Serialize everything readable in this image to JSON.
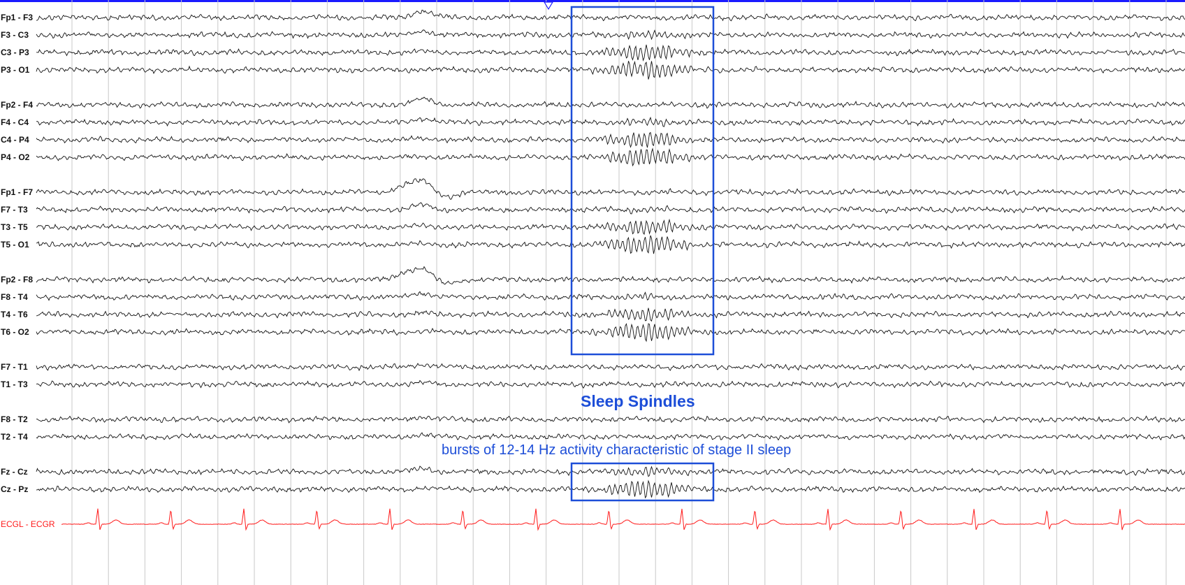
{
  "channels": [
    {
      "label": "Fp1 - F3",
      "spindle": 0.0,
      "slow": 1.0,
      "color": "#111111"
    },
    {
      "label": "F3 - C3",
      "spindle": 0.35,
      "slow": 0.6,
      "color": "#111111"
    },
    {
      "label": "C3 - P3",
      "spindle": 0.9,
      "slow": 0.2,
      "color": "#111111"
    },
    {
      "label": "P3 - O1",
      "spindle": 1.0,
      "slow": 0.1,
      "color": "#111111"
    },
    {
      "label": "Fp2 - F4",
      "spindle": 0.0,
      "slow": 1.0,
      "color": "#111111"
    },
    {
      "label": "F4 - C4",
      "spindle": 0.35,
      "slow": 0.6,
      "color": "#111111"
    },
    {
      "label": "C4 - P4",
      "spindle": 0.9,
      "slow": 0.2,
      "color": "#111111"
    },
    {
      "label": "P4 - O2",
      "spindle": 1.0,
      "slow": 0.1,
      "color": "#111111"
    },
    {
      "label": "Fp1 - F7",
      "spindle": 0.0,
      "slow": 1.6,
      "color": "#111111"
    },
    {
      "label": "F7 - T3",
      "spindle": 0.2,
      "slow": 0.8,
      "color": "#111111"
    },
    {
      "label": "T3 - T5",
      "spindle": 0.8,
      "slow": 0.2,
      "color": "#111111"
    },
    {
      "label": "T5 - O1",
      "spindle": 1.05,
      "slow": 0.1,
      "color": "#111111"
    },
    {
      "label": "Fp2 - F8",
      "spindle": 0.0,
      "slow": 1.6,
      "color": "#111111"
    },
    {
      "label": "F8 - T4",
      "spindle": 0.25,
      "slow": 0.6,
      "color": "#111111"
    },
    {
      "label": "T4 - T6",
      "spindle": 0.75,
      "slow": 0.2,
      "color": "#111111"
    },
    {
      "label": "T6 - O2",
      "spindle": 1.05,
      "slow": 0.1,
      "color": "#111111"
    },
    {
      "label": "F7 - T1",
      "spindle": 0.0,
      "slow": 0.4,
      "color": "#111111"
    },
    {
      "label": "T1 - T3",
      "spindle": 0.0,
      "slow": 0.3,
      "color": "#111111"
    },
    {
      "label": "F8 - T2",
      "spindle": 0.0,
      "slow": 0.4,
      "color": "#111111"
    },
    {
      "label": "T2 - T4",
      "spindle": 0.0,
      "slow": 0.3,
      "color": "#111111"
    },
    {
      "label": "Fz - Cz",
      "spindle": 0.4,
      "slow": 0.5,
      "color": "#111111"
    },
    {
      "label": "Cz - Pz",
      "spindle": 1.0,
      "slow": 0.2,
      "color": "#111111"
    }
  ],
  "ecg": {
    "label": "ECGL - ECGR",
    "color": "#ff1a1a"
  },
  "annotation": {
    "title": "Sleep Spindles",
    "caption": "bursts of 12-14 Hz activity characteristic of stage II sleep",
    "color": "#1d4ed8"
  },
  "colors": {
    "grid": "#c8c8c8",
    "top_bar": "#1a1aff",
    "trace": "#111111"
  },
  "icons": {
    "time_marker": "triangle-down-icon"
  }
}
